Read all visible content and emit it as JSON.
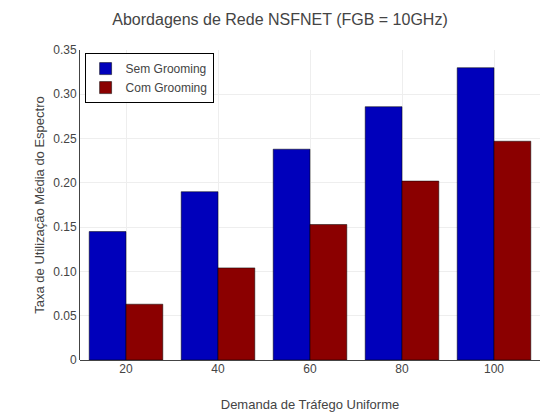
{
  "chart_data": {
    "type": "bar",
    "title": "Abordagens de Rede NSFNET (FGB = 10GHz)",
    "xlabel": "Demanda de Tráfego Uniforme",
    "ylabel": "Taxa de Utilização Média do Espectro",
    "categories": [
      20,
      40,
      60,
      80,
      100
    ],
    "series": [
      {
        "name": "Sem Grooming",
        "color": "#0000BB",
        "values": [
          0.145,
          0.19,
          0.238,
          0.286,
          0.33
        ]
      },
      {
        "name": "Com Grooming",
        "color": "#8B0000",
        "values": [
          0.063,
          0.104,
          0.153,
          0.202,
          0.247
        ]
      }
    ],
    "ylim": [
      0,
      0.35
    ],
    "yticks": [
      0,
      0.05,
      {
        "value": 0.1,
        "label": "0.10"
      },
      0.15,
      {
        "value": 0.2,
        "label": "0.20"
      },
      0.25,
      {
        "value": 0.3,
        "label": "0.30"
      },
      0.35
    ],
    "grid": true,
    "legend": "upper left"
  }
}
